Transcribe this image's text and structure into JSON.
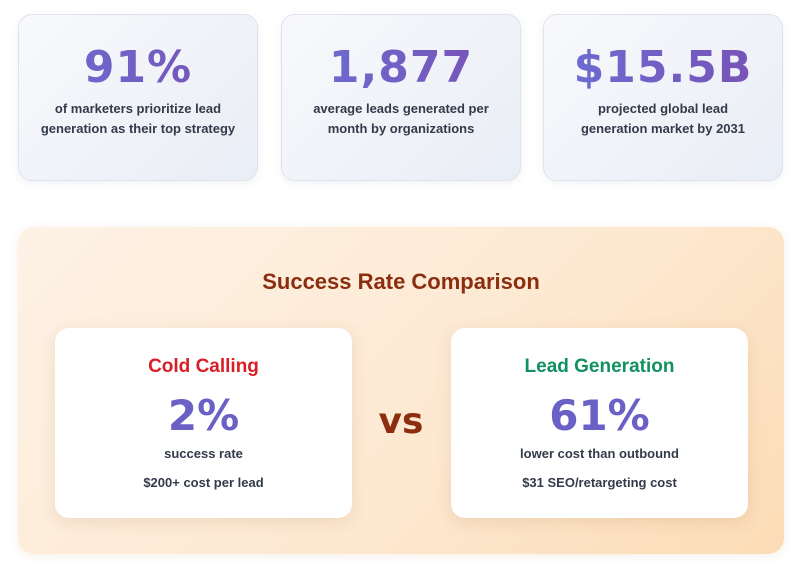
{
  "stats": [
    {
      "value": "91%",
      "description": "of marketers prioritize lead generation as their top strategy"
    },
    {
      "value": "1,877",
      "description": "average leads generated per month by organizations"
    },
    {
      "value": "$15.5B",
      "description": "projected global lead generation market by 2031"
    }
  ],
  "comparison": {
    "title": "Success Rate Comparison",
    "vs": "vs",
    "left": {
      "name": "Cold Calling",
      "name_color": "#d91f26",
      "value": "2%",
      "metric": "success rate",
      "cost": "$200+ cost per lead"
    },
    "right": {
      "name": "Lead Generation",
      "name_color": "#119060",
      "value": "61%",
      "metric": "lower cost than outbound",
      "cost": "$31 SEO/retargeting cost"
    }
  }
}
